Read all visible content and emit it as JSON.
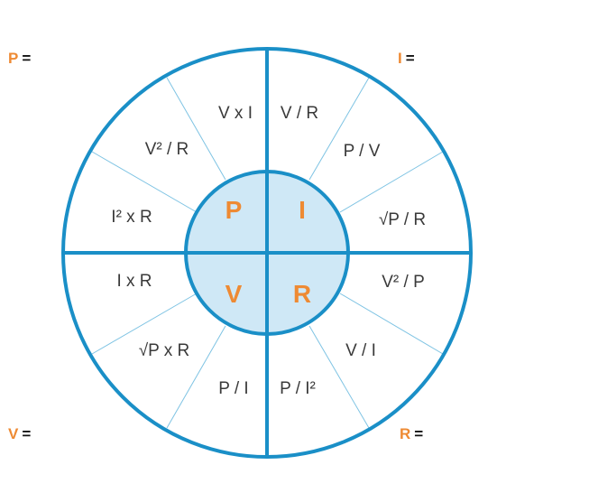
{
  "colors": {
    "ring": "#1a8fc7",
    "spoke": "#7ec3e3",
    "inner_fill": "#cfe8f6",
    "letter": "#ee8a33",
    "text": "#3a3a3a"
  },
  "corner_labels": {
    "p": {
      "symbol": "P",
      "eq": "="
    },
    "i": {
      "symbol": "I",
      "eq": "="
    },
    "v": {
      "symbol": "V",
      "eq": "="
    },
    "r": {
      "symbol": "R",
      "eq": "="
    }
  },
  "center": {
    "p": "P",
    "i": "I",
    "v": "V",
    "r": "R"
  },
  "formulas": {
    "p1": "V x I",
    "p2": "V² / R",
    "p3": "I² x R",
    "i1": "V / R",
    "i2": "P / V",
    "i3": "√P / R",
    "r1": "V² / P",
    "r2": "V / I",
    "r3": "P / I²",
    "v1": "P / I",
    "v2": "√P x R",
    "v3": "I x R"
  }
}
